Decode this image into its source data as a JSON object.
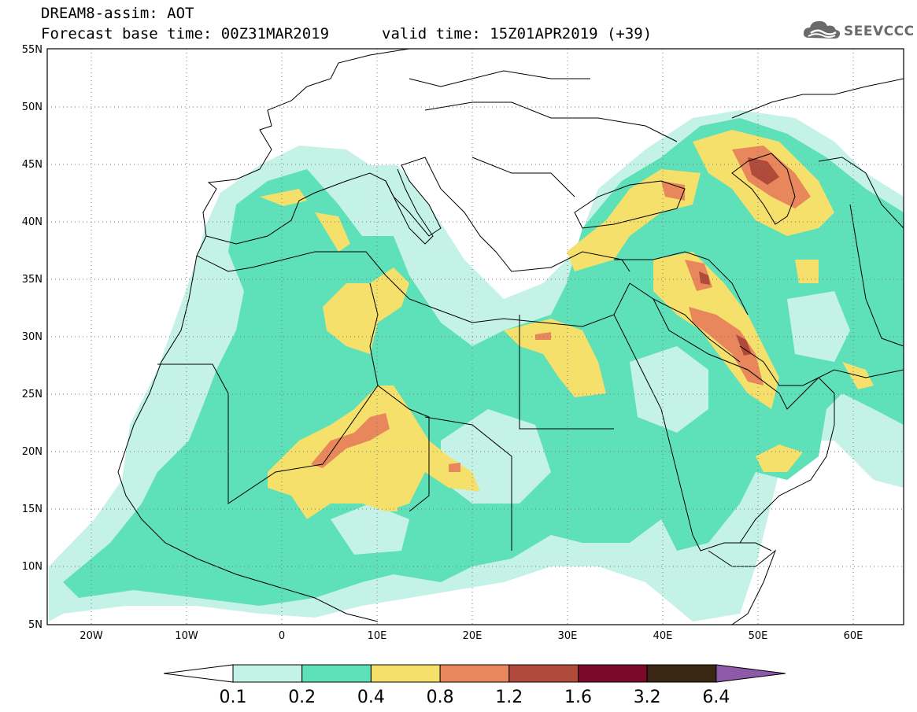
{
  "header": {
    "title": "DREAM8-assim: AOT",
    "forecast_base": "Forecast base time: 00Z31MAR2019",
    "valid_time": "valid time: 15Z01APR2019 (+39)"
  },
  "logo": {
    "text": "SEEVCCC",
    "icon": "cloud-icon",
    "color": "#6a6a6a"
  },
  "map": {
    "lat_labels": [
      "55N",
      "50N",
      "45N",
      "40N",
      "35N",
      "30N",
      "25N",
      "20N",
      "15N",
      "10N",
      "5N"
    ],
    "lon_labels": [
      "20W",
      "10W",
      "0",
      "10E",
      "20E",
      "30E",
      "40E",
      "50E",
      "60E"
    ],
    "extent": {
      "lon_min": -25,
      "lon_max": 65,
      "lat_min": 5,
      "lat_max": 55
    }
  },
  "colorbar": {
    "labels": [
      "0.1",
      "0.2",
      "0.4",
      "0.8",
      "1.2",
      "1.6",
      "3.2",
      "6.4"
    ],
    "colors": [
      "#c4f2e6",
      "#5ee0b8",
      "#f5e06c",
      "#e8875c",
      "#b04a3a",
      "#7a0a2a",
      "#3b2614"
    ],
    "over_color": "#8c5aa8",
    "under_color": "#ffffff"
  }
}
